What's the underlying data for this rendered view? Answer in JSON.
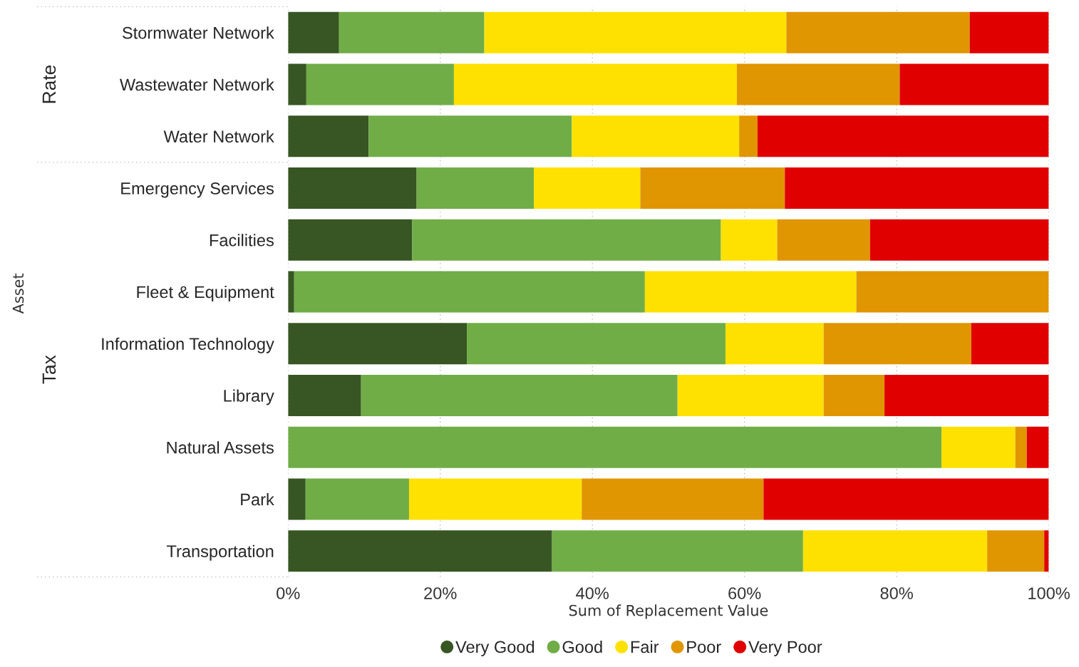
{
  "chart_data": {
    "type": "bar",
    "orientation": "horizontal",
    "stacked": true,
    "xlabel": "Sum of Replacement Value",
    "categories": [
      "Stormwater Network",
      "Wastewater Network",
      "Water Network",
      "Emergency Services",
      "Facilities",
      "Fleet & Equipment",
      "Information Technology",
      "Library",
      "Natural Assets",
      "Park",
      "Transportation"
    ],
    "series": [
      {
        "name": "Very Good",
        "color": "#375623",
        "values": [
          6.7,
          2.4,
          10.6,
          16.9,
          16.3,
          0.8,
          23.5,
          9.6,
          0,
          2.3,
          34.7
        ]
      },
      {
        "name": "Good",
        "color": "#70ad47",
        "values": [
          19.1,
          19.4,
          26.7,
          15.4,
          40.6,
          46.1,
          34.0,
          41.6,
          85.9,
          13.6,
          33.0
        ]
      },
      {
        "name": "Fair",
        "color": "#ffe100",
        "values": [
          39.7,
          37.2,
          22.0,
          14.0,
          7.4,
          27.8,
          12.9,
          19.2,
          9.7,
          22.7,
          24.2
        ]
      },
      {
        "name": "Poor",
        "color": "#e09600",
        "values": [
          24.1,
          21.4,
          2.4,
          19.0,
          12.2,
          25.3,
          19.4,
          8.0,
          1.5,
          23.9,
          7.5
        ]
      },
      {
        "name": "Very Poor",
        "color": "#e00000",
        "values": [
          10.4,
          19.6,
          38.3,
          34.7,
          23.5,
          0,
          10.2,
          21.6,
          2.9,
          37.5,
          0.6
        ]
      }
    ],
    "xlim": [
      0,
      100
    ],
    "xticks": [
      {
        "value": 0,
        "label": "0%"
      },
      {
        "value": 20,
        "label": "20%"
      },
      {
        "value": 40,
        "label": "40%"
      },
      {
        "value": 60,
        "label": "60%"
      },
      {
        "value": 80,
        "label": "80%"
      },
      {
        "value": 100,
        "label": "100%"
      }
    ],
    "annotations": [
      "Rate",
      "Tax",
      "Asset"
    ],
    "grid": "x",
    "legend": "bottom",
    "marker": "circle"
  }
}
